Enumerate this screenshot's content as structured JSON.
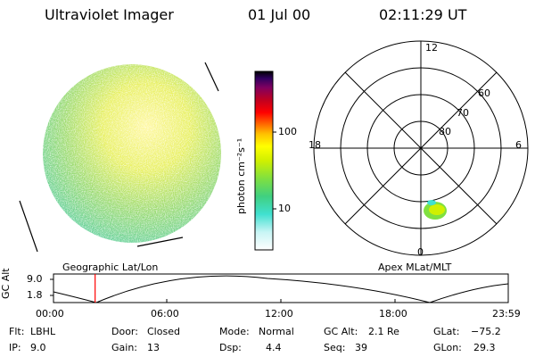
{
  "header": {
    "instrument": "Ultraviolet Imager",
    "date": "01 Jul 00",
    "time": "02:11:29 UT"
  },
  "left_panel": {
    "label": "Geographic Lat/Lon"
  },
  "colorbar": {
    "unit_label": "photon cm⁻²s⁻¹",
    "tick_100": "100",
    "tick_10": "10",
    "colors": [
      "#ffffff",
      "#c8f5f5",
      "#40e0d0",
      "#40d080",
      "#80e040",
      "#d0f000",
      "#ffff00",
      "#ffc000",
      "#ff6000",
      "#ff0000",
      "#c00020",
      "#800060",
      "#300060",
      "#000000"
    ]
  },
  "polar_plot": {
    "label": "Apex MLat/MLT",
    "mlt_top": "12",
    "mlt_left": "18",
    "mlt_right": "6",
    "mlt_bottom": "0",
    "lat_60": "60",
    "lat_70": "70",
    "lat_80": "80"
  },
  "altitude_plot": {
    "ylabel": "GC Alt",
    "ytick_high": "9.0",
    "ytick_low": "1.8",
    "xticks": [
      "00:00",
      "06:00",
      "12:00",
      "18:00",
      "23:59"
    ],
    "current_time_fraction": 0.0915
  },
  "info": {
    "flt": "Flt:",
    "flt_val": "LBHL",
    "ip": "IP:",
    "ip_val": "9.0",
    "door": "Door:",
    "door_val": "Closed",
    "gain": "Gain:",
    "gain_val": "13",
    "mode": "Mode:",
    "mode_val": "Normal",
    "dsp": "Dsp:",
    "dsp_val": "4.4",
    "gcalt": "GC Alt:",
    "gcalt_val": "2.1 Re",
    "seq": "Seq:",
    "seq_val": "39",
    "glat": "GLat:",
    "glat_val": "−75.2",
    "glon": "GLon:",
    "glon_val": "29.3"
  }
}
